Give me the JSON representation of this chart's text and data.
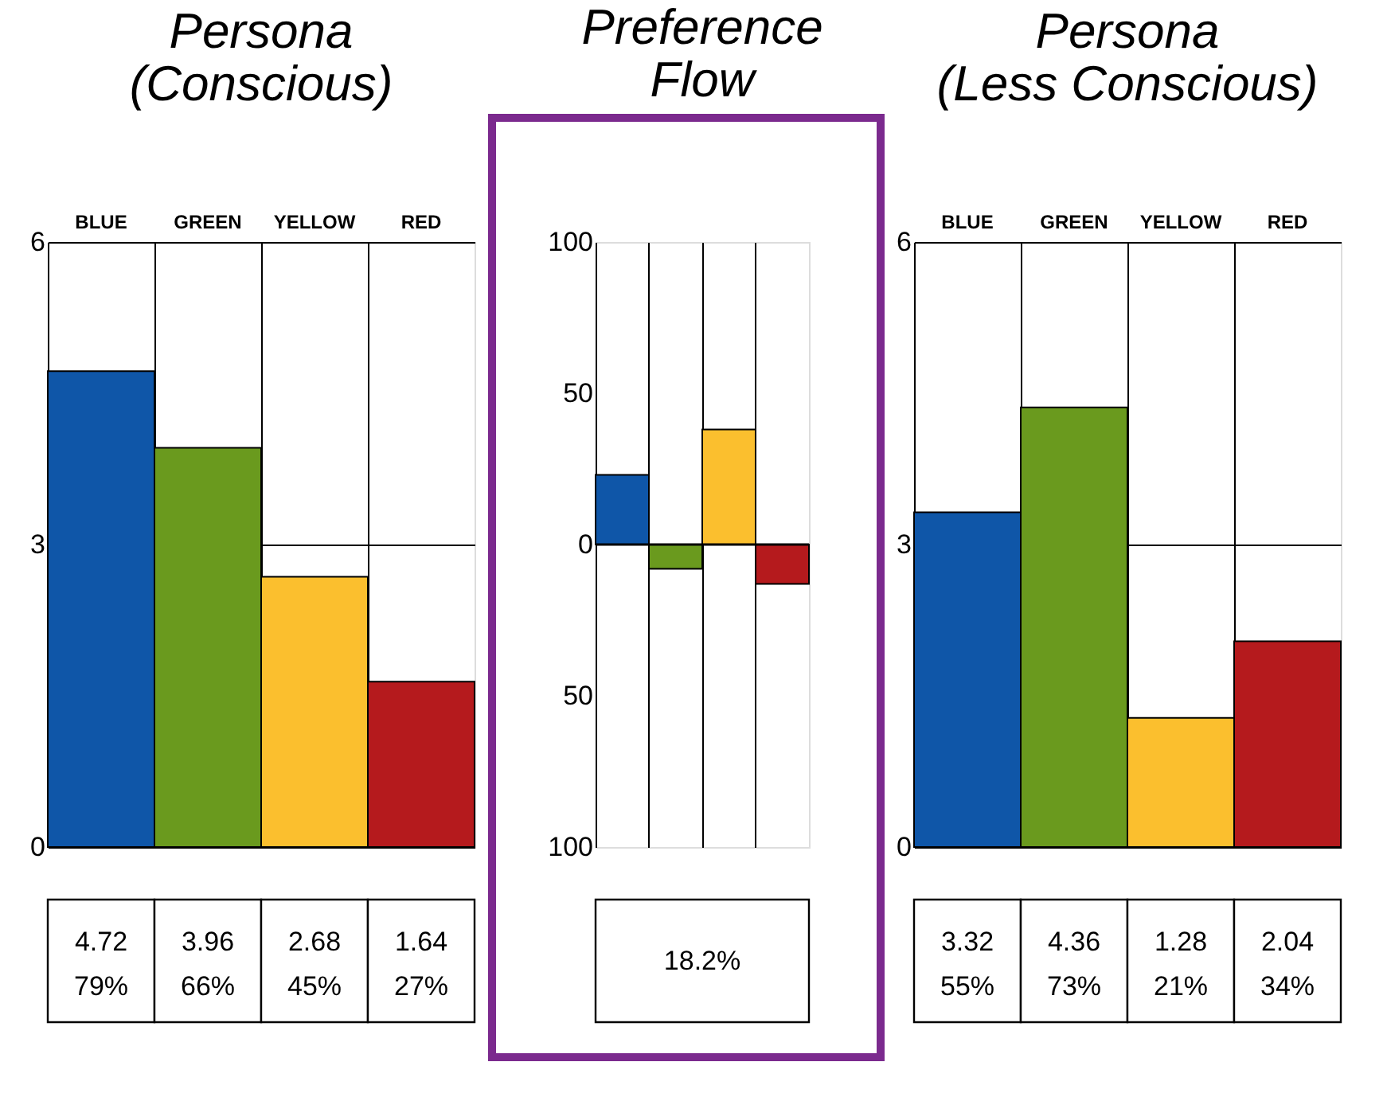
{
  "chart_data": [
    {
      "type": "bar",
      "title": "Persona\n(Conscious)",
      "categories": [
        "BLUE",
        "GREEN",
        "YELLOW",
        "RED"
      ],
      "values": [
        4.72,
        3.96,
        2.68,
        1.64
      ],
      "colors": [
        "#0f56a8",
        "#6a9a1e",
        "#fbbf2e",
        "#b51a1d"
      ],
      "value_labels": [
        "4.72\n79%",
        "3.96\n66%",
        "2.68\n45%",
        "1.64\n27%"
      ],
      "ylim": [
        0,
        6
      ],
      "yticks": [
        0,
        3,
        6
      ],
      "grid": "y"
    },
    {
      "type": "bar",
      "title": "Preference\nFlow",
      "categories": [
        null,
        null,
        null,
        null
      ],
      "values": [
        23,
        -8,
        38,
        -13
      ],
      "colors": [
        "#0f56a8",
        "#6a9a1e",
        "#fbbf2e",
        "#b51a1d"
      ],
      "ylim": [
        -100,
        100
      ],
      "yticks": [
        {
          "value": -100,
          "label": "100"
        },
        {
          "value": -50,
          "label": "50"
        },
        0,
        50,
        100
      ],
      "grid": false,
      "ref_lines": [
        {
          "axis": "y",
          "value": 0,
          "color": "#000000"
        }
      ],
      "annotations": [
        "18.2%"
      ]
    },
    {
      "type": "bar",
      "title": "Persona\n(Less Conscious)",
      "categories": [
        "BLUE",
        "GREEN",
        "YELLOW",
        "RED"
      ],
      "values": [
        3.32,
        4.36,
        1.28,
        2.04
      ],
      "colors": [
        "#0f56a8",
        "#6a9a1e",
        "#fbbf2e",
        "#b51a1d"
      ],
      "value_labels": [
        "3.32\n55%",
        "4.36\n73%",
        "1.28\n21%",
        "2.04\n34%"
      ],
      "ylim": [
        0,
        6
      ],
      "yticks": [
        0,
        3,
        6
      ],
      "grid": "y"
    }
  ]
}
